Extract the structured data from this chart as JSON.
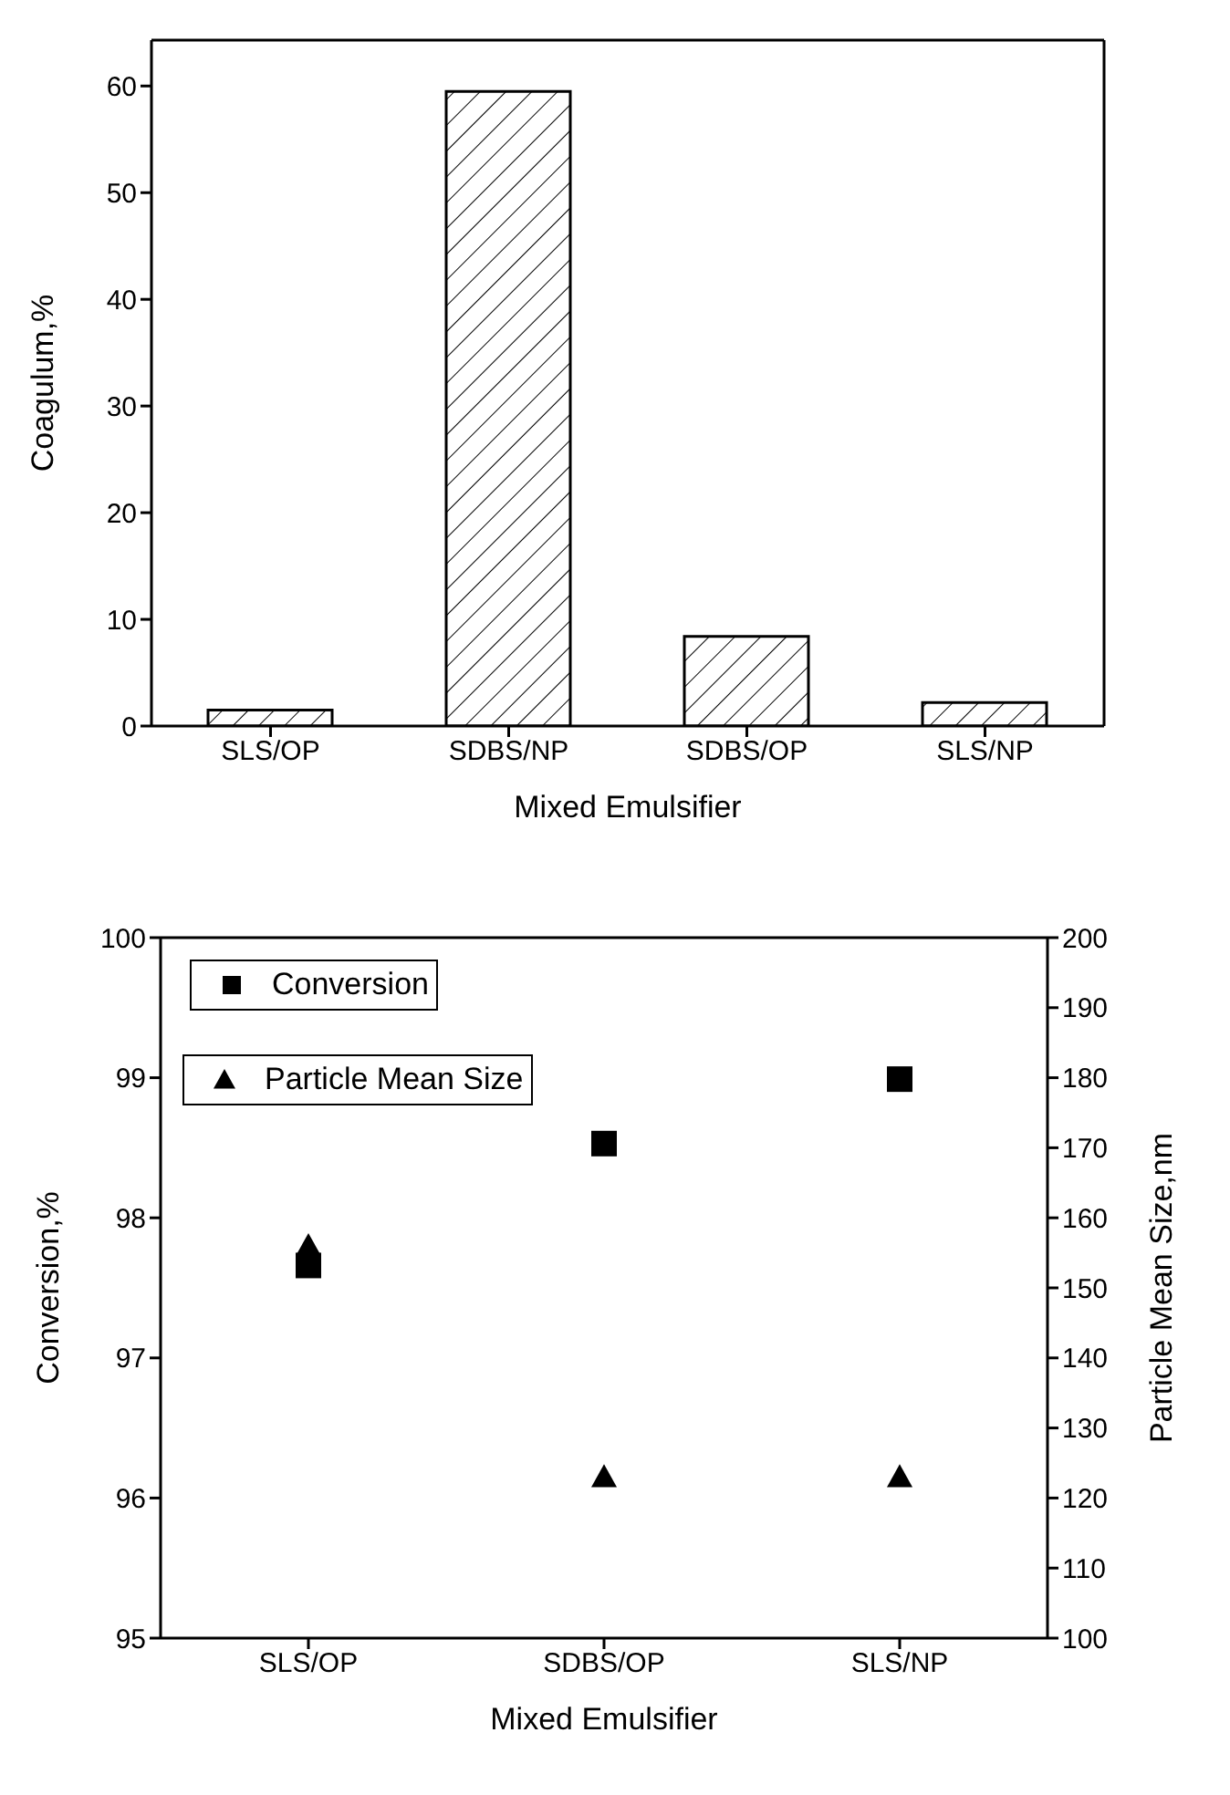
{
  "chart_data": [
    {
      "type": "bar",
      "xlabel": "Mixed Emulsifier",
      "ylabel": "Coagulum,%",
      "categories": [
        "SLS/OP",
        "SDBS/NP",
        "SDBS/OP",
        "SLS/NP"
      ],
      "values": [
        1.5,
        59.5,
        8.4,
        2.2
      ],
      "color": "#000000",
      "ylim": [
        0,
        64.3
      ],
      "yticks": [
        0,
        10,
        20,
        30,
        40,
        50,
        60
      ],
      "grid": false
    },
    {
      "type": "scatter",
      "xlabel": "Mixed Emulsifier",
      "ylabel": "Conversion,%",
      "y2label": "Particle Mean Size,nm",
      "categories": [
        "SLS/OP",
        "SDBS/OP",
        "SLS/NP"
      ],
      "series": [
        {
          "name": "Conversion",
          "color": "#000000",
          "marker": "square",
          "values": [
            97.66,
            98.53,
            98.99
          ]
        },
        {
          "name": "Particle Mean Size",
          "color": "#000000",
          "marker": "triangle",
          "axis": "y2",
          "values": [
            156,
            123,
            123
          ]
        }
      ],
      "ylim": [
        95,
        100
      ],
      "yticks": [
        95,
        96,
        97,
        98,
        99,
        100
      ],
      "y2lim": [
        100,
        200
      ],
      "y2ticks": [
        100,
        110,
        120,
        130,
        140,
        150,
        160,
        170,
        180,
        190,
        200
      ],
      "grid": false,
      "legend": "top left"
    }
  ]
}
